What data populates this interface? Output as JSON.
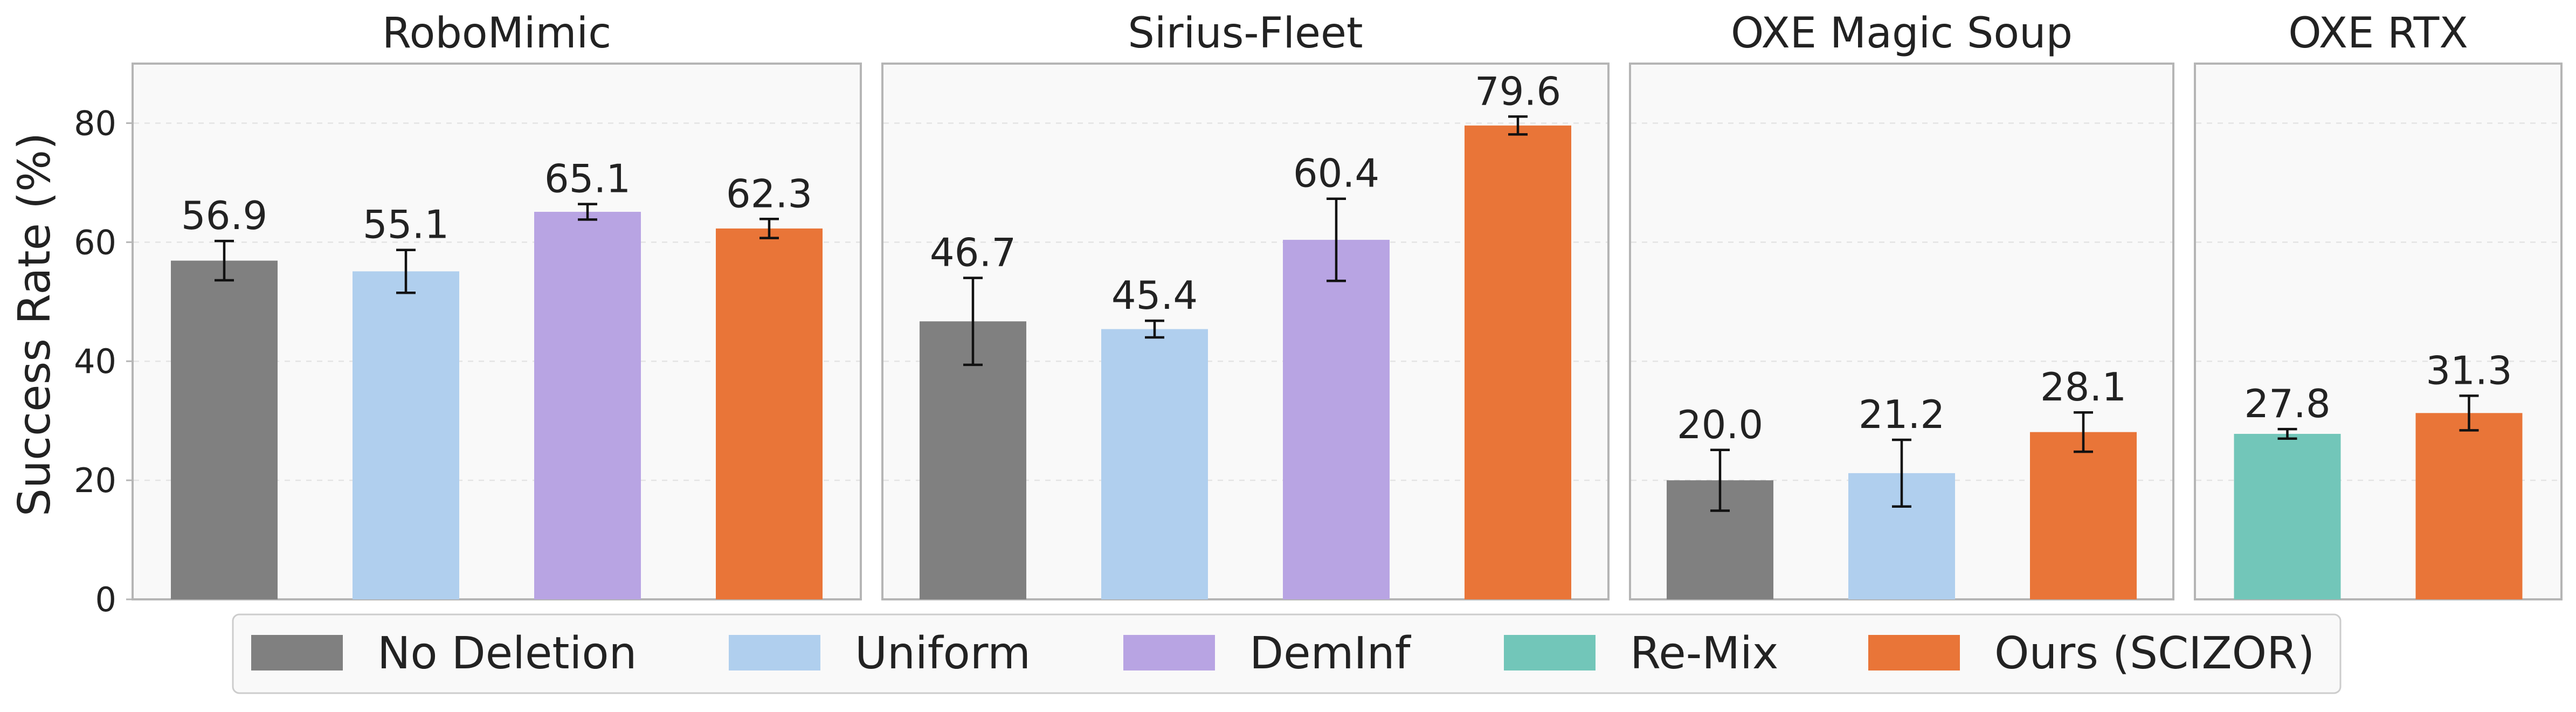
{
  "colors": {
    "No Deletion": "#808080",
    "Uniform": "#b0cfee",
    "DemInf": "#b8a4e3",
    "Re-Mix": "#72c6b9",
    "Ours (SCIZOR)": "#e97538"
  },
  "chart_data": {
    "type": "bar",
    "ylabel": "Success Rate (%)",
    "ylim": [
      0,
      90
    ],
    "yticks": [
      0,
      20,
      40,
      60,
      80
    ],
    "grid": "horizontal-dashed",
    "legend_position": "bottom",
    "legend": [
      "No Deletion",
      "Uniform",
      "DemInf",
      "Re-Mix",
      "Ours (SCIZOR)"
    ],
    "panels": [
      {
        "title": "RoboMimic",
        "bars": [
          {
            "series": "No Deletion",
            "value": 56.9,
            "err": 3.3,
            "label": "56.9"
          },
          {
            "series": "Uniform",
            "value": 55.1,
            "err": 3.6,
            "label": "55.1"
          },
          {
            "series": "DemInf",
            "value": 65.1,
            "err": 1.3,
            "label": "65.1"
          },
          {
            "series": "Ours (SCIZOR)",
            "value": 62.3,
            "err": 1.6,
            "label": "62.3"
          }
        ]
      },
      {
        "title": "Sirius-Fleet",
        "bars": [
          {
            "series": "No Deletion",
            "value": 46.7,
            "err": 7.3,
            "label": "46.7"
          },
          {
            "series": "Uniform",
            "value": 45.4,
            "err": 1.4,
            "label": "45.4"
          },
          {
            "series": "DemInf",
            "value": 60.4,
            "err": 6.9,
            "label": "60.4"
          },
          {
            "series": "Ours (SCIZOR)",
            "value": 79.6,
            "err": 1.5,
            "label": "79.6"
          }
        ]
      },
      {
        "title": "OXE Magic Soup",
        "bars": [
          {
            "series": "No Deletion",
            "value": 20.0,
            "err": 5.1,
            "label": "20.0"
          },
          {
            "series": "Uniform",
            "value": 21.2,
            "err": 5.6,
            "label": "21.2"
          },
          {
            "series": "Ours (SCIZOR)",
            "value": 28.1,
            "err": 3.3,
            "label": "28.1"
          }
        ]
      },
      {
        "title": "OXE RTX",
        "bars": [
          {
            "series": "Re-Mix",
            "value": 27.8,
            "err": 0.8,
            "label": "27.8"
          },
          {
            "series": "Ours (SCIZOR)",
            "value": 31.3,
            "err": 2.9,
            "label": "31.3"
          }
        ]
      }
    ]
  }
}
